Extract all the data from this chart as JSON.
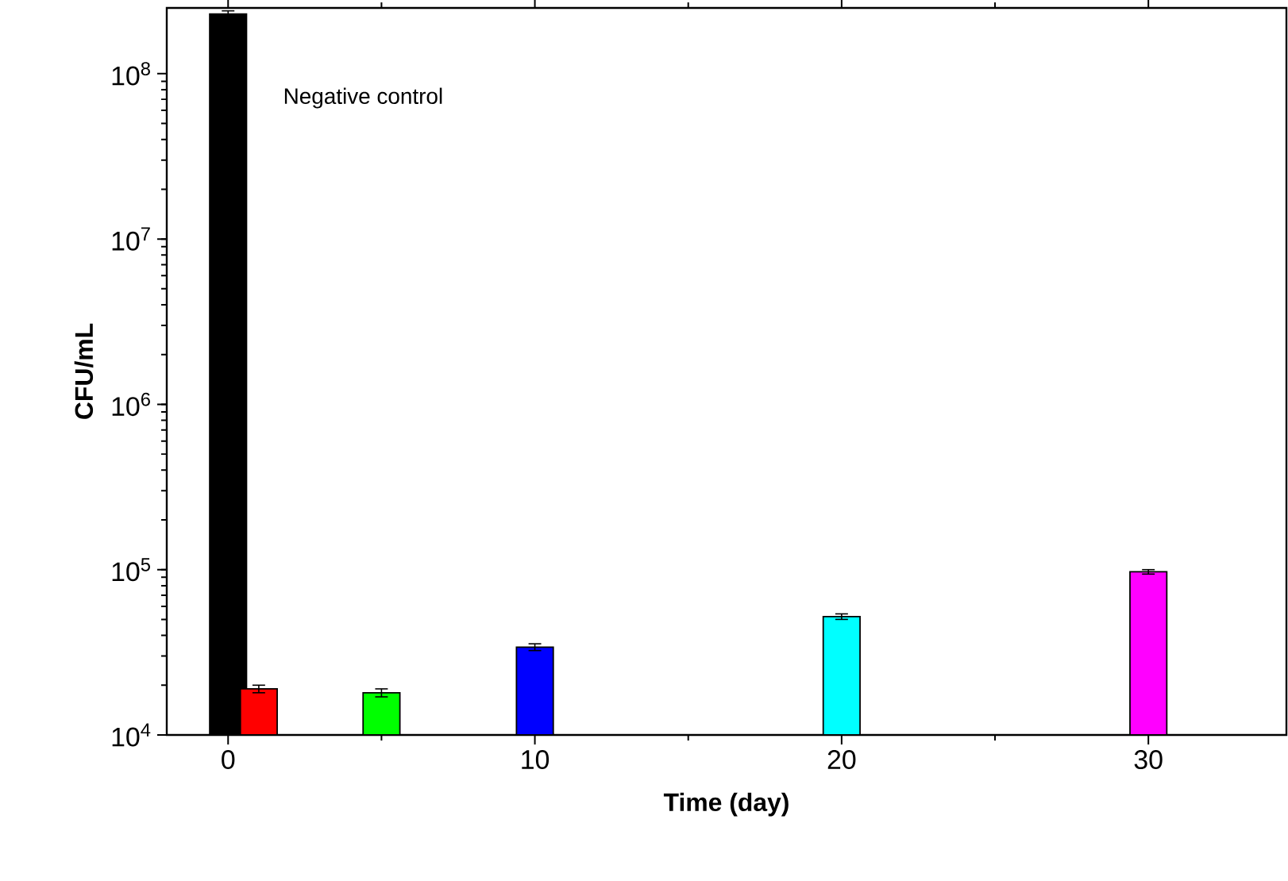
{
  "chart_data": {
    "type": "bar",
    "xlabel": "Time (day)",
    "ylabel": "CFU/mL",
    "log": "y",
    "x": [
      0,
      1,
      5,
      10,
      20,
      30
    ],
    "values": [
      230000000,
      19000,
      18000,
      34000,
      52000,
      97000
    ],
    "errors": [
      10000000,
      1000,
      1000,
      1600,
      2000,
      3000
    ],
    "colors": [
      "#000000",
      "#ff0000",
      "#00ff00",
      "#0000ff",
      "#00ffff",
      "#ff00ff"
    ],
    "xlim": [
      -2,
      34.5
    ],
    "xticks": [
      0,
      {
        "value": 5,
        "label": null
      },
      10,
      {
        "value": 15,
        "label": null
      },
      20,
      {
        "value": 25,
        "label": null
      },
      30
    ],
    "ylim": [
      10000,
      250000000
    ],
    "yticks": [
      {
        "value": 10000,
        "label": "10$^{4}$"
      },
      {
        "value": 100000,
        "label": "10$^{5}$"
      },
      {
        "value": 1000000,
        "label": "10$^{6}$"
      },
      {
        "value": 10000000,
        "label": "10$^{7}$"
      },
      {
        "value": 100000000,
        "label": "10$^{8}$"
      }
    ],
    "annotations": [
      "Negative control"
    ]
  }
}
